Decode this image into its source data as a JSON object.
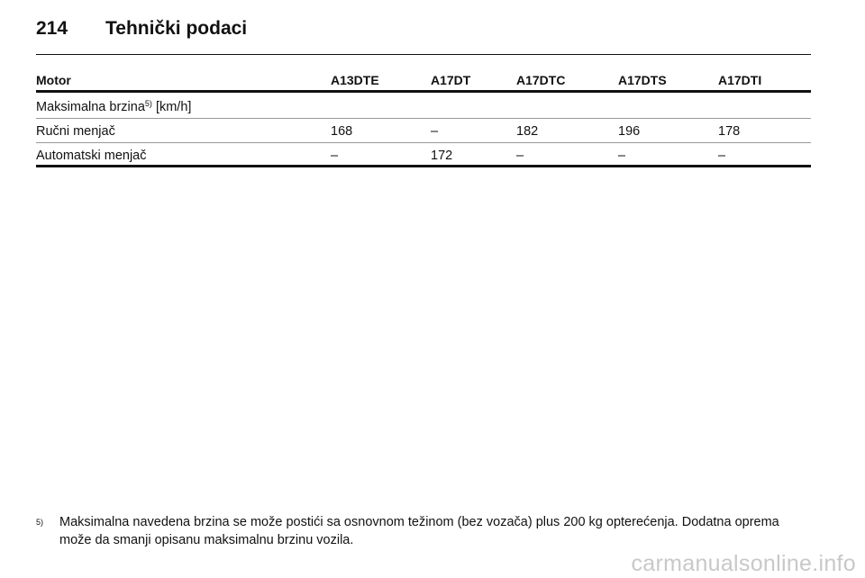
{
  "header": {
    "page_number": "214",
    "title": "Tehnički podaci"
  },
  "table": {
    "columns": [
      "Motor",
      "A13DTE",
      "A17DT",
      "A17DTC",
      "A17DTS",
      "A17DTI"
    ],
    "section": {
      "label": "Maksimalna brzina",
      "footnote_ref": "5)",
      "unit": "[km/h]"
    },
    "rows": [
      [
        "Ručni menjač",
        "168",
        "–",
        "182",
        "196",
        "178"
      ],
      [
        "Automatski menjač",
        "–",
        "172",
        "–",
        "–",
        "–"
      ]
    ]
  },
  "footnote": {
    "marker": "5)",
    "text": "Maksimalna navedena brzina se može postići sa osnovnom težinom (bez vozača) plus 200 kg opterećenja. Dodatna oprema može da smanji opisanu maksimalnu brzinu vozila."
  },
  "watermark": "carmanualsonline.info"
}
